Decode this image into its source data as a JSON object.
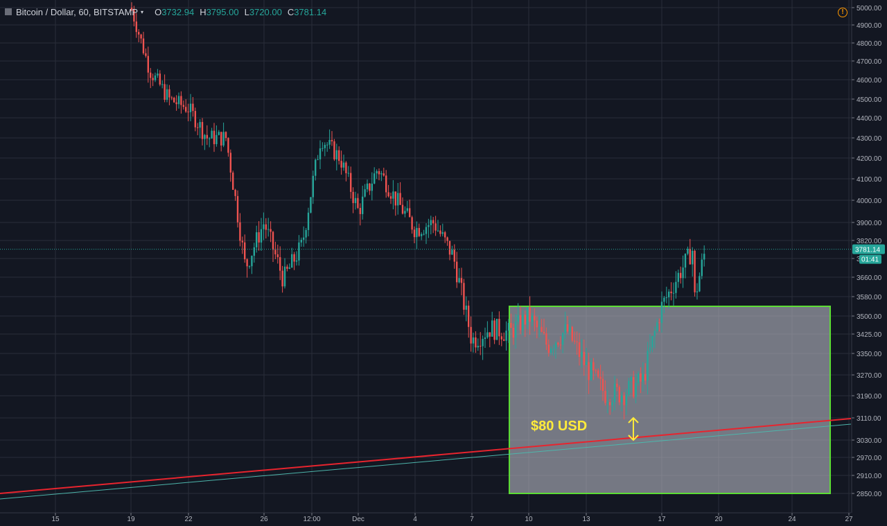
{
  "header": {
    "symbol": "Bitcoin / Dollar, 60, BITSTAMP",
    "caret": "▾",
    "ohlc": [
      {
        "k": "O",
        "v": "3732.94"
      },
      {
        "k": "H",
        "v": "3795.00"
      },
      {
        "k": "L",
        "v": "3720.00"
      },
      {
        "k": "C",
        "v": "3781.14"
      }
    ],
    "warning_icon": "!"
  },
  "price_axis": {
    "labels": [
      "5000.00",
      "4900.00",
      "4800.00",
      "4700.00",
      "4600.00",
      "4500.00",
      "4400.00",
      "4300.00",
      "4200.00",
      "4100.00",
      "4000.00",
      "3900.00",
      "3820.00",
      "3740.00",
      "3660.00",
      "3580.00",
      "3500.00",
      "3425.00",
      "3350.00",
      "3270.00",
      "3190.00",
      "3110.00",
      "3030.00",
      "2970.00",
      "2910.00",
      "2850.00"
    ],
    "current_price": "3781.14",
    "countdown": "01:41"
  },
  "time_axis": {
    "labels": [
      "15",
      "19",
      "22",
      "26",
      "12:00",
      "Dec",
      "4",
      "7",
      "10",
      "13",
      "17",
      "20",
      "24",
      "27"
    ]
  },
  "annotation": {
    "label": "$80 USD"
  },
  "colors": {
    "background": "#131722",
    "up": "#26a69a",
    "down": "#ef5350",
    "support_line": "#e8242e",
    "channel_line": "#4db6ac",
    "zone_fill": "#b2b5be",
    "zone_border": "#5cdd35",
    "annotation": "#ffeb3b",
    "price_tag": "#26a69a"
  },
  "chart_data": {
    "type": "candlestick",
    "symbol": "Bitcoin / Dollar",
    "interval": "60",
    "exchange": "BITSTAMP",
    "last": {
      "open": 3732.94,
      "high": 3795.0,
      "low": 3720.0,
      "close": 3781.14
    },
    "y_range": [
      2830,
      5010
    ],
    "price_path": [
      {
        "x": "19",
        "close": 5000
      },
      {
        "x": "20",
        "close": 4650
      },
      {
        "x": "21",
        "close": 4500
      },
      {
        "x": "22",
        "close": 4450
      },
      {
        "x": "23",
        "close": 4300
      },
      {
        "x": "24",
        "close": 4300
      },
      {
        "x": "25",
        "close": 3700
      },
      {
        "x": "26",
        "close": 3900
      },
      {
        "x": "27",
        "close": 3650
      },
      {
        "x": "28",
        "close": 3800
      },
      {
        "x": "29",
        "close": 4300
      },
      {
        "x": "30",
        "close": 4200
      },
      {
        "x": "Dec",
        "close": 3950
      },
      {
        "x": "2",
        "close": 4150
      },
      {
        "x": "3",
        "close": 4000
      },
      {
        "x": "4",
        "close": 3870
      },
      {
        "x": "5",
        "close": 3900
      },
      {
        "x": "6",
        "close": 3750
      },
      {
        "x": "7",
        "close": 3400
      },
      {
        "x": "8",
        "close": 3450
      },
      {
        "x": "9",
        "close": 3430
      },
      {
        "x": "10",
        "close": 3500
      },
      {
        "x": "11",
        "close": 3380
      },
      {
        "x": "12",
        "close": 3440
      },
      {
        "x": "13",
        "close": 3300
      },
      {
        "x": "14",
        "close": 3200
      },
      {
        "x": "15",
        "close": 3200
      },
      {
        "x": "16",
        "close": 3250
      },
      {
        "x": "17",
        "close": 3540
      },
      {
        "x": "18",
        "close": 3781.14
      }
    ],
    "lines": [
      {
        "type": "support",
        "from": {
          "x": "13 Nov",
          "price": 2850
        },
        "to": {
          "x": "27 Dec",
          "price": 3110
        }
      },
      {
        "type": "channel",
        "from": {
          "x": "13 Nov",
          "price": 2830
        },
        "to": {
          "x": "27 Dec",
          "price": 3085
        }
      }
    ],
    "zone": {
      "from": "9 Dec",
      "to": "26 Dec",
      "price_top": 3540,
      "price_bottom": 2850
    },
    "annotation": {
      "text": "$80 USD",
      "from_price": 3110,
      "to_price": 3030
    }
  }
}
